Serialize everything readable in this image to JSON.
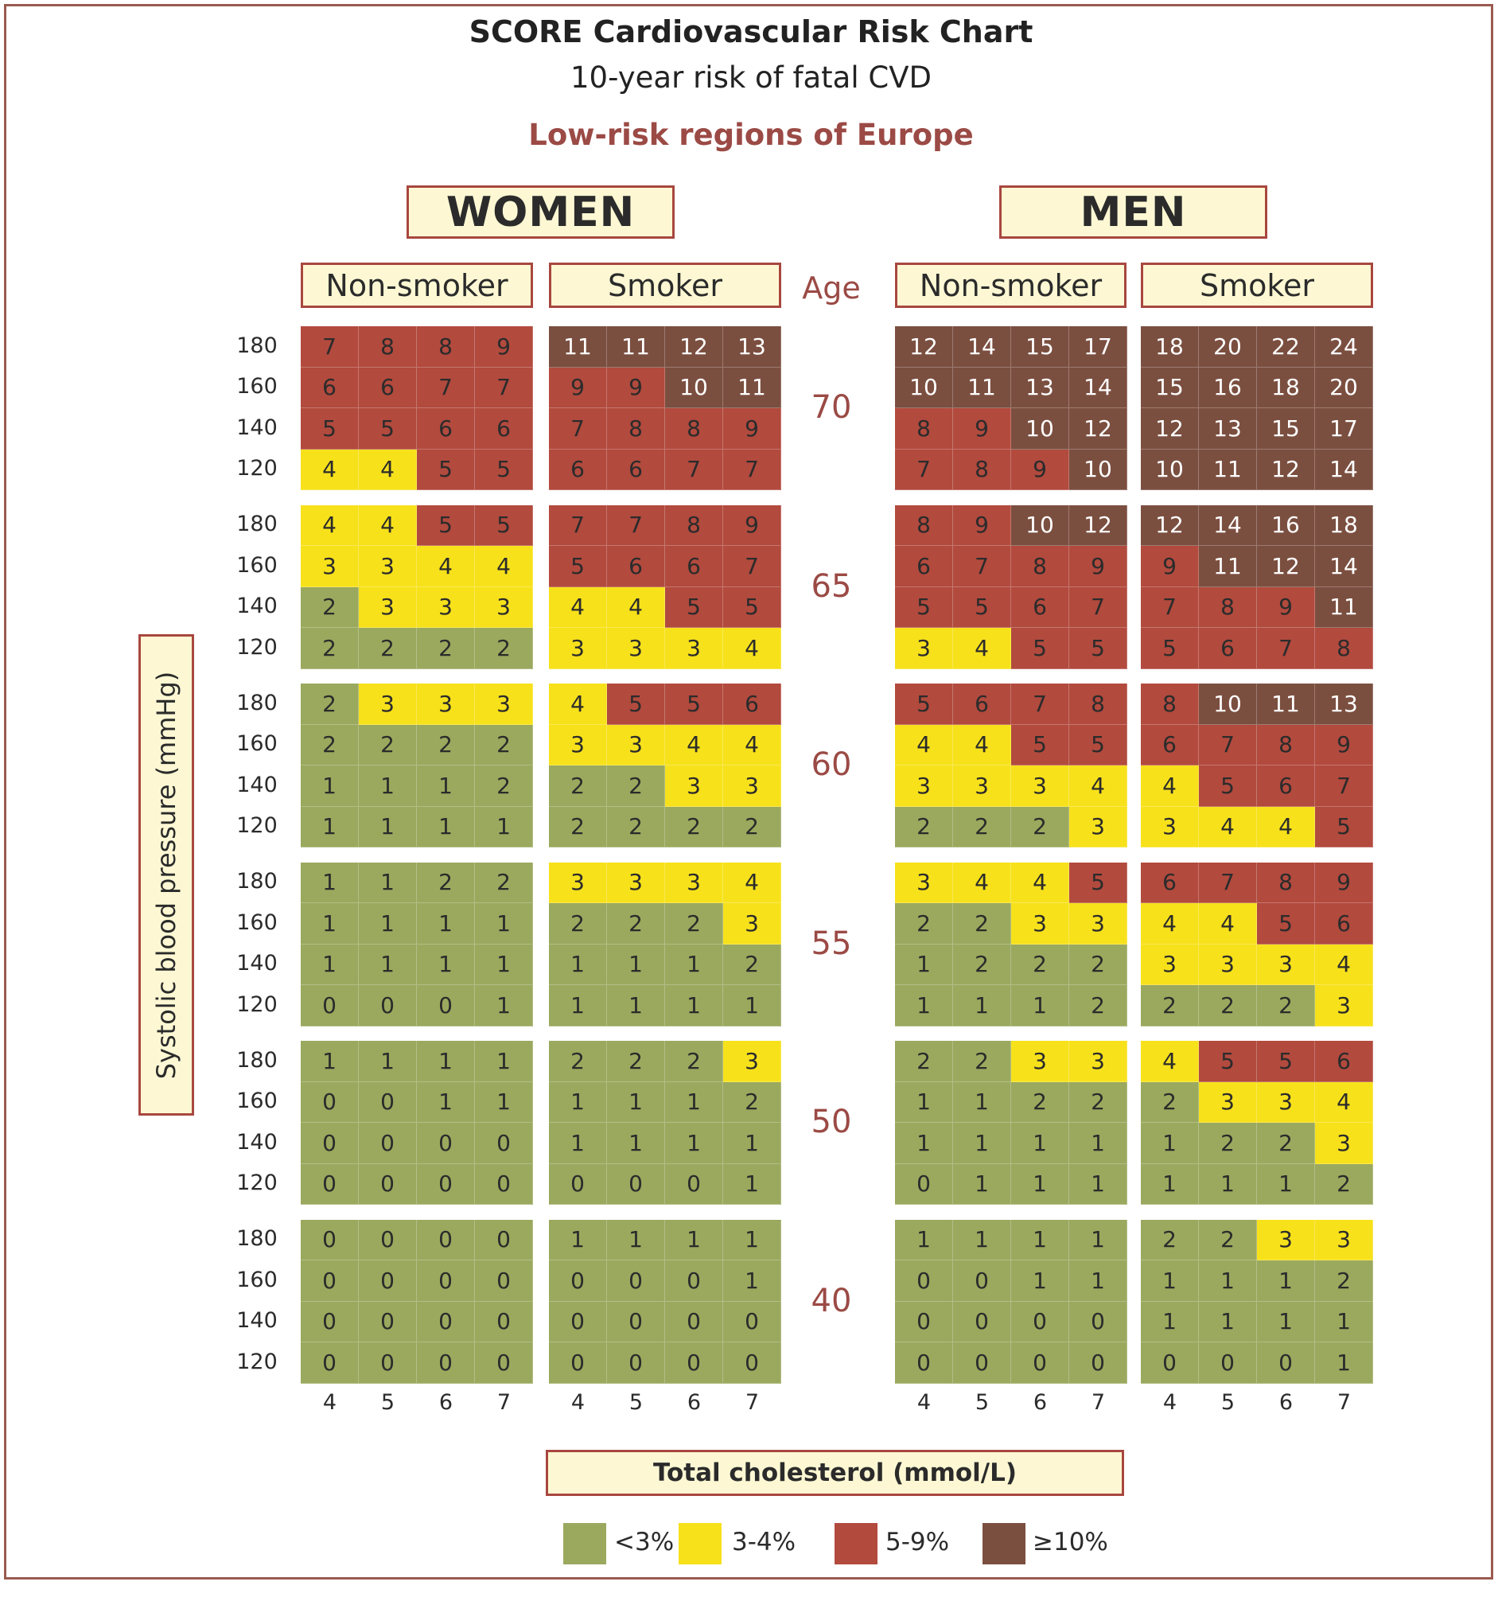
{
  "chart_data": {
    "type": "heatmap",
    "title": "SCORE Cardiovascular Risk Chart",
    "subtitle": "10-year risk of fatal CVD",
    "region": "Low-risk regions of Europe",
    "xlabel": "Total cholesterol (mmol/L)",
    "ylabel": "Systolic blood pressure (mmHg)",
    "age_header": "Age",
    "cholesterol_ticks": [
      "4",
      "5",
      "6",
      "7"
    ],
    "sbp_ticks": [
      "180",
      "160",
      "140",
      "120"
    ],
    "ages": [
      "70",
      "65",
      "60",
      "55",
      "50",
      "40"
    ],
    "sexes": [
      {
        "label": "WOMEN",
        "panels": [
          {
            "label": "Non-smoker",
            "values": [
              [
                [
                  7,
                  8,
                  8,
                  9
                ],
                [
                  6,
                  6,
                  7,
                  7
                ],
                [
                  5,
                  5,
                  6,
                  6
                ],
                [
                  4,
                  4,
                  5,
                  5
                ]
              ],
              [
                [
                  4,
                  4,
                  5,
                  5
                ],
                [
                  3,
                  3,
                  4,
                  4
                ],
                [
                  2,
                  3,
                  3,
                  3
                ],
                [
                  2,
                  2,
                  2,
                  2
                ]
              ],
              [
                [
                  2,
                  3,
                  3,
                  3
                ],
                [
                  2,
                  2,
                  2,
                  2
                ],
                [
                  1,
                  1,
                  1,
                  2
                ],
                [
                  1,
                  1,
                  1,
                  1
                ]
              ],
              [
                [
                  1,
                  1,
                  2,
                  2
                ],
                [
                  1,
                  1,
                  1,
                  1
                ],
                [
                  1,
                  1,
                  1,
                  1
                ],
                [
                  0,
                  0,
                  0,
                  1
                ]
              ],
              [
                [
                  1,
                  1,
                  1,
                  1
                ],
                [
                  0,
                  0,
                  1,
                  1
                ],
                [
                  0,
                  0,
                  0,
                  0
                ],
                [
                  0,
                  0,
                  0,
                  0
                ]
              ],
              [
                [
                  0,
                  0,
                  0,
                  0
                ],
                [
                  0,
                  0,
                  0,
                  0
                ],
                [
                  0,
                  0,
                  0,
                  0
                ],
                [
                  0,
                  0,
                  0,
                  0
                ]
              ]
            ]
          },
          {
            "label": "Smoker",
            "values": [
              [
                [
                  11,
                  11,
                  12,
                  13
                ],
                [
                  9,
                  9,
                  10,
                  11
                ],
                [
                  7,
                  8,
                  8,
                  9
                ],
                [
                  6,
                  6,
                  7,
                  7
                ]
              ],
              [
                [
                  7,
                  7,
                  8,
                  9
                ],
                [
                  5,
                  6,
                  6,
                  7
                ],
                [
                  4,
                  4,
                  5,
                  5
                ],
                [
                  3,
                  3,
                  3,
                  4
                ]
              ],
              [
                [
                  4,
                  5,
                  5,
                  6
                ],
                [
                  3,
                  3,
                  4,
                  4
                ],
                [
                  2,
                  2,
                  3,
                  3
                ],
                [
                  2,
                  2,
                  2,
                  2
                ]
              ],
              [
                [
                  3,
                  3,
                  3,
                  4
                ],
                [
                  2,
                  2,
                  2,
                  3
                ],
                [
                  1,
                  1,
                  1,
                  2
                ],
                [
                  1,
                  1,
                  1,
                  1
                ]
              ],
              [
                [
                  2,
                  2,
                  2,
                  3
                ],
                [
                  1,
                  1,
                  1,
                  2
                ],
                [
                  1,
                  1,
                  1,
                  1
                ],
                [
                  0,
                  0,
                  0,
                  1
                ]
              ],
              [
                [
                  1,
                  1,
                  1,
                  1
                ],
                [
                  0,
                  0,
                  0,
                  1
                ],
                [
                  0,
                  0,
                  0,
                  0
                ],
                [
                  0,
                  0,
                  0,
                  0
                ]
              ]
            ]
          }
        ]
      },
      {
        "label": "MEN",
        "panels": [
          {
            "label": "Non-smoker",
            "values": [
              [
                [
                  12,
                  14,
                  15,
                  17
                ],
                [
                  10,
                  11,
                  13,
                  14
                ],
                [
                  8,
                  9,
                  10,
                  12
                ],
                [
                  7,
                  8,
                  9,
                  10
                ]
              ],
              [
                [
                  8,
                  9,
                  10,
                  12
                ],
                [
                  6,
                  7,
                  8,
                  9
                ],
                [
                  5,
                  5,
                  6,
                  7
                ],
                [
                  3,
                  4,
                  5,
                  5
                ]
              ],
              [
                [
                  5,
                  6,
                  7,
                  8
                ],
                [
                  4,
                  4,
                  5,
                  5
                ],
                [
                  3,
                  3,
                  3,
                  4
                ],
                [
                  2,
                  2,
                  2,
                  3
                ]
              ],
              [
                [
                  3,
                  4,
                  4,
                  5
                ],
                [
                  2,
                  2,
                  3,
                  3
                ],
                [
                  1,
                  2,
                  2,
                  2
                ],
                [
                  1,
                  1,
                  1,
                  2
                ]
              ],
              [
                [
                  2,
                  2,
                  3,
                  3
                ],
                [
                  1,
                  1,
                  2,
                  2
                ],
                [
                  1,
                  1,
                  1,
                  1
                ],
                [
                  0,
                  1,
                  1,
                  1
                ]
              ],
              [
                [
                  1,
                  1,
                  1,
                  1
                ],
                [
                  0,
                  0,
                  1,
                  1
                ],
                [
                  0,
                  0,
                  0,
                  0
                ],
                [
                  0,
                  0,
                  0,
                  0
                ]
              ]
            ]
          },
          {
            "label": "Smoker",
            "values": [
              [
                [
                  18,
                  20,
                  22,
                  24
                ],
                [
                  15,
                  16,
                  18,
                  20
                ],
                [
                  12,
                  13,
                  15,
                  17
                ],
                [
                  10,
                  11,
                  12,
                  14
                ]
              ],
              [
                [
                  12,
                  14,
                  16,
                  18
                ],
                [
                  9,
                  11,
                  12,
                  14
                ],
                [
                  7,
                  8,
                  9,
                  11
                ],
                [
                  5,
                  6,
                  7,
                  8
                ]
              ],
              [
                [
                  8,
                  10,
                  11,
                  13
                ],
                [
                  6,
                  7,
                  8,
                  9
                ],
                [
                  4,
                  5,
                  6,
                  7
                ],
                [
                  3,
                  4,
                  4,
                  5
                ]
              ],
              [
                [
                  6,
                  7,
                  8,
                  9
                ],
                [
                  4,
                  4,
                  5,
                  6
                ],
                [
                  3,
                  3,
                  3,
                  4
                ],
                [
                  2,
                  2,
                  2,
                  3
                ]
              ],
              [
                [
                  4,
                  5,
                  5,
                  6
                ],
                [
                  2,
                  3,
                  3,
                  4
                ],
                [
                  1,
                  2,
                  2,
                  3
                ],
                [
                  1,
                  1,
                  1,
                  2
                ]
              ],
              [
                [
                  2,
                  2,
                  3,
                  3
                ],
                [
                  1,
                  1,
                  1,
                  2
                ],
                [
                  1,
                  1,
                  1,
                  1
                ],
                [
                  0,
                  0,
                  0,
                  1
                ]
              ]
            ]
          }
        ]
      }
    ],
    "legend": [
      {
        "label": "<3%",
        "color": "#9aa95e",
        "min": 0,
        "max": 2
      },
      {
        "label": "3-4%",
        "color": "#f7e11b",
        "min": 3,
        "max": 4
      },
      {
        "label": "5-9%",
        "color": "#b24a3e",
        "min": 5,
        "max": 9
      },
      {
        "label": "≥10%",
        "color": "#7b4f40",
        "min": 10,
        "max": 100
      }
    ]
  }
}
